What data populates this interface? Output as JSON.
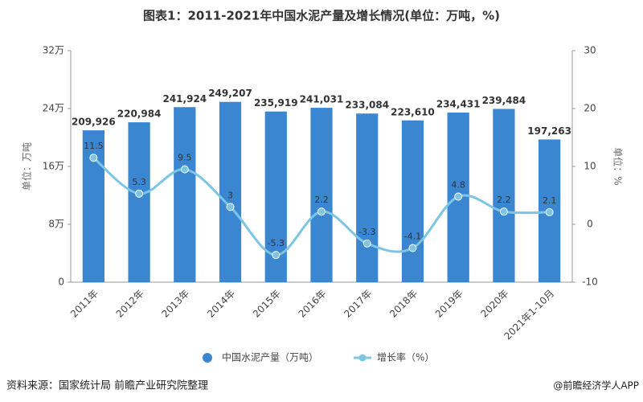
{
  "chart_data": {
    "type": "bar_line",
    "title": "图表1：2011-2021年中国水泥产量及增长情况(单位：万吨，%)",
    "y_label": "单位：万吨",
    "y2_label": "单位：%",
    "categories": [
      "2011年",
      "2012年",
      "2013年",
      "2014年",
      "2015年",
      "2016年",
      "2017年",
      "2018年",
      "2019年",
      "2020年",
      "2021年1-10月"
    ],
    "series": [
      {
        "name": "中国水泥产量（万吨）",
        "type": "bar",
        "color": "#3b86d1",
        "values": [
          209926,
          220984,
          241924,
          249207,
          235919,
          241031,
          233084,
          223610,
          234431,
          239484,
          197263
        ],
        "value_labels": [
          "209,926",
          "220,984",
          "241,924",
          "249,207",
          "235,919",
          "241,031",
          "233,084",
          "223,610",
          "234,431",
          "239,484",
          "197,263"
        ]
      },
      {
        "name": "增长率（%）",
        "type": "line",
        "axis": "y2",
        "color": "#7cc5e4",
        "values": [
          11.5,
          5.3,
          9.5,
          3,
          -5.3,
          2.2,
          -3.3,
          -4.1,
          4.8,
          2.2,
          2.1
        ]
      }
    ],
    "ylim": [
      0,
      320000
    ],
    "yticks": [
      0,
      {
        "value": 80000,
        "label": "8万"
      },
      {
        "value": 160000,
        "label": "16万"
      },
      {
        "value": 240000,
        "label": "24万"
      },
      {
        "value": 320000,
        "label": "32万"
      }
    ],
    "y2lim": [
      -10,
      30
    ],
    "y2ticks": [
      -10,
      0,
      10,
      20,
      30
    ],
    "legend": "bottom",
    "source": "资料来源：国家统计局 前瞻产业研究院整理",
    "credit": "@前瞻经济学人APP"
  }
}
